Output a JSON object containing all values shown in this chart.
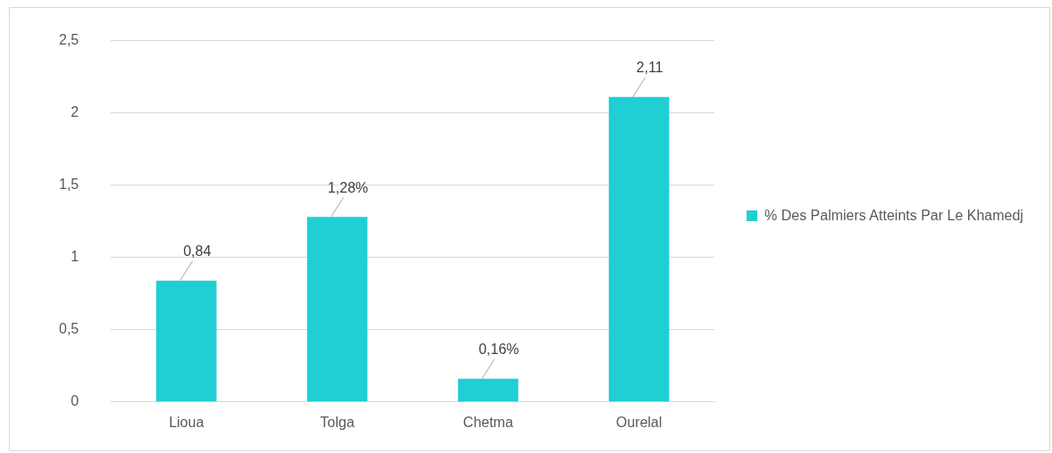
{
  "chart_data": {
    "type": "bar",
    "categories": [
      "Lioua",
      "Tolga",
      "Chetma",
      "Ourelal"
    ],
    "series": [
      {
        "name": "% Des Palmiers Atteints Par Le Khamedj",
        "color": "#1fcfd4",
        "values": [
          0.84,
          1.28,
          0.16,
          2.11
        ],
        "value_labels": [
          "0,84",
          "1,28%",
          "0,16%",
          "2,11"
        ]
      }
    ],
    "ylim": [
      0,
      2.5
    ],
    "yticks": [
      0,
      {
        "value": 0.5,
        "label": "0,5"
      },
      1,
      {
        "value": 1.5,
        "label": "1,5"
      },
      2,
      {
        "value": 2.5,
        "label": "2,5"
      }
    ],
    "grid": "y",
    "legend": "right"
  }
}
